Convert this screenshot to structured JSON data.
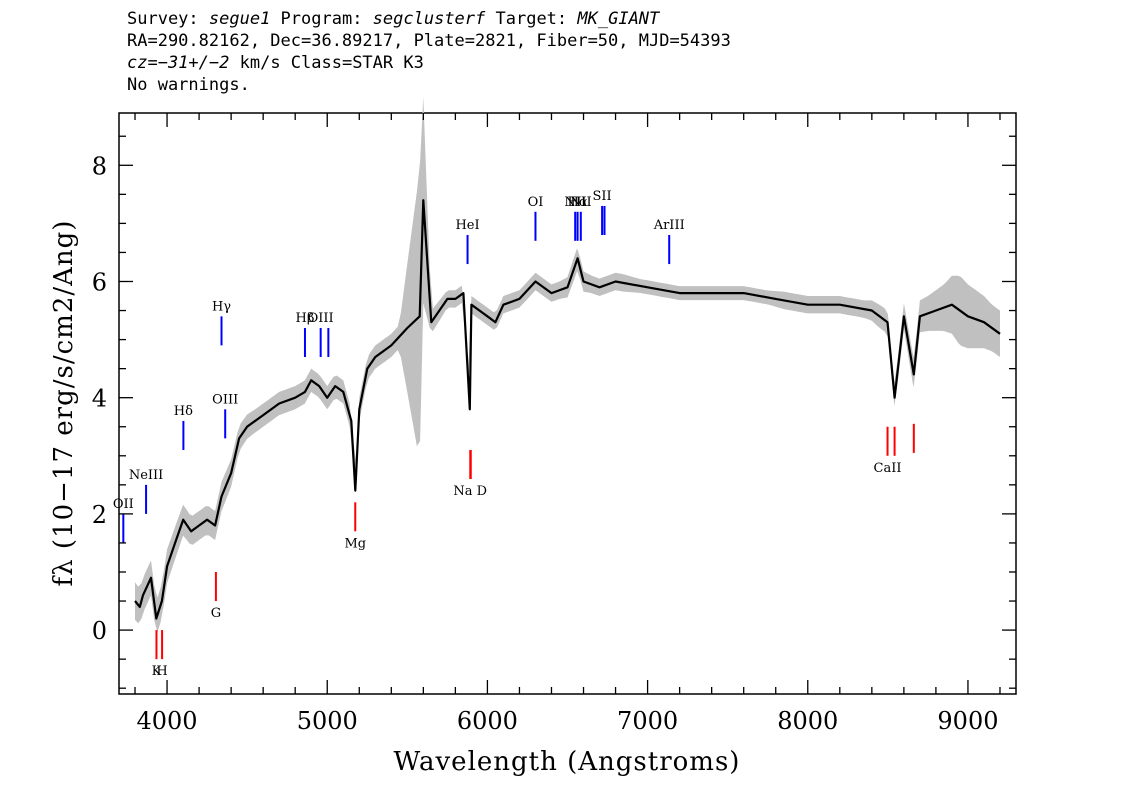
{
  "header": {
    "line1": {
      "survey_label": "Survey: ",
      "survey": "segue1",
      "program_label": " Program: ",
      "program": "segclusterf",
      "target_label": " Target: ",
      "target": "MK_GIANT"
    },
    "line2": "RA=290.82162, Dec=36.89217, Plate=2821, Fiber=50, MJD=54393",
    "line3": {
      "cz_label": "cz",
      "cz_value": "=−31+/−2",
      "rest": " km/s Class=STAR K3"
    },
    "line4": "No warnings."
  },
  "chart_data": {
    "type": "line",
    "title": "",
    "xlabel": "Wavelength (Angstroms)",
    "ylabel": "fλ (10−17 erg/s/cm2/Ang)",
    "xlim": [
      3700,
      9300
    ],
    "ylim": [
      -1.1,
      8.9
    ],
    "x_ticks": [
      4000,
      5000,
      6000,
      7000,
      8000,
      9000
    ],
    "y_ticks": [
      0,
      2,
      4,
      6,
      8
    ],
    "grid": false,
    "colors": {
      "flux": "#000000",
      "error": "#c0c0c0",
      "emission_lines": "#0000ff",
      "absorption_lines": "#ff0000"
    },
    "series": [
      {
        "role": "flux",
        "x": [
          3800,
          3830,
          3850,
          3900,
          3933,
          3968,
          4000,
          4050,
          4101,
          4150,
          4200,
          4250,
          4300,
          4340,
          4400,
          4450,
          4500,
          4600,
          4700,
          4800,
          4861,
          4900,
          4950,
          5000,
          5050,
          5100,
          5150,
          5175,
          5200,
          5250,
          5300,
          5400,
          5500,
          5577,
          5600,
          5650,
          5700,
          5750,
          5800,
          5850,
          5890,
          5900,
          5950,
          6000,
          6050,
          6100,
          6200,
          6300,
          6400,
          6500,
          6563,
          6600,
          6700,
          6800,
          7000,
          7200,
          7400,
          7600,
          7800,
          8000,
          8200,
          8400,
          8498,
          8542,
          8600,
          8662,
          8700,
          8800,
          8900,
          9000,
          9100,
          9200
        ],
        "y": [
          0.5,
          0.4,
          0.6,
          0.9,
          0.2,
          0.5,
          1.1,
          1.5,
          1.9,
          1.7,
          1.8,
          1.9,
          1.8,
          2.3,
          2.7,
          3.3,
          3.5,
          3.7,
          3.9,
          4.0,
          4.1,
          4.3,
          4.2,
          4.0,
          4.2,
          4.1,
          3.6,
          2.4,
          3.8,
          4.5,
          4.7,
          4.9,
          5.2,
          5.4,
          7.4,
          5.3,
          5.5,
          5.7,
          5.7,
          5.8,
          3.8,
          5.6,
          5.5,
          5.4,
          5.3,
          5.6,
          5.7,
          6.0,
          5.8,
          5.9,
          6.4,
          6.0,
          5.9,
          6.0,
          5.9,
          5.8,
          5.8,
          5.8,
          5.7,
          5.6,
          5.6,
          5.5,
          5.3,
          4.0,
          5.4,
          4.4,
          5.4,
          5.5,
          5.6,
          5.4,
          5.3,
          5.1
        ]
      },
      {
        "role": "error",
        "x": [
          3750,
          3850,
          3950,
          4050,
          4150,
          4250,
          4350,
          4450,
          4550,
          4650,
          4750,
          4850,
          4950,
          5050,
          5150,
          5250,
          5350,
          5450,
          5577,
          5650,
          5750,
          5850,
          5950,
          6050,
          6150,
          6250,
          6350,
          6450,
          6550,
          6650,
          6750,
          6850,
          6950,
          7050,
          7150,
          7250,
          7350,
          7450,
          7550,
          7650,
          7750,
          7850,
          7950,
          8050,
          8150,
          8250,
          8350,
          8450,
          8550,
          8650,
          8750,
          8850,
          8950,
          9050,
          9150
        ],
        "y": [
          0.35,
          0.3,
          0.3,
          0.28,
          0.25,
          0.25,
          0.25,
          0.22,
          0.2,
          0.2,
          0.2,
          0.2,
          0.2,
          0.2,
          0.2,
          0.2,
          0.2,
          0.2,
          2.5,
          0.2,
          0.15,
          0.15,
          0.15,
          0.15,
          0.15,
          0.15,
          0.15,
          0.15,
          0.2,
          0.15,
          0.15,
          0.15,
          0.12,
          0.12,
          0.12,
          0.12,
          0.12,
          0.12,
          0.12,
          0.12,
          0.12,
          0.15,
          0.15,
          0.15,
          0.15,
          0.15,
          0.15,
          0.2,
          0.2,
          0.25,
          0.3,
          0.4,
          0.6,
          0.5,
          0.4
        ]
      }
    ],
    "emission_lines": [
      {
        "label": "OII",
        "wavelength": 3727,
        "y0": 1.5,
        "y1": 2.0
      },
      {
        "label": "NeIII",
        "wavelength": 3869,
        "y0": 2.0,
        "y1": 2.5
      },
      {
        "label": "Hδ",
        "wavelength": 4102,
        "y0": 3.1,
        "y1": 3.6
      },
      {
        "label": "Hγ",
        "wavelength": 4340,
        "y0": 4.9,
        "y1": 5.4
      },
      {
        "label": "OIII",
        "wavelength": 4363,
        "y0": 3.3,
        "y1": 3.8
      },
      {
        "label": "Hβ",
        "wavelength": 4861,
        "y0": 4.7,
        "y1": 5.2
      },
      {
        "label": "OIII",
        "wavelength": 4959,
        "y0": 4.7,
        "y1": 5.2
      },
      {
        "label": "",
        "wavelength": 5007,
        "y0": 4.7,
        "y1": 5.2
      },
      {
        "label": "HeI",
        "wavelength": 5876,
        "y0": 6.3,
        "y1": 6.8
      },
      {
        "label": "OI",
        "wavelength": 6300,
        "y0": 6.7,
        "y1": 7.2
      },
      {
        "label": "NII",
        "wavelength": 6548,
        "y0": 6.7,
        "y1": 7.2
      },
      {
        "label": "Hα",
        "wavelength": 6563,
        "y0": 6.7,
        "y1": 7.2
      },
      {
        "label": "NII",
        "wavelength": 6583,
        "y0": 6.7,
        "y1": 7.2
      },
      {
        "label": "SII",
        "wavelength": 6716,
        "y0": 6.8,
        "y1": 7.3
      },
      {
        "label": "",
        "wavelength": 6731,
        "y0": 6.8,
        "y1": 7.3
      },
      {
        "label": "ArIII",
        "wavelength": 7135,
        "y0": 6.3,
        "y1": 6.8
      }
    ],
    "absorption_lines": [
      {
        "label": "K",
        "wavelength": 3934,
        "y0": -0.5,
        "y1": 0.0
      },
      {
        "label": "H",
        "wavelength": 3969,
        "y0": -0.5,
        "y1": 0.0
      },
      {
        "label": "G",
        "wavelength": 4305,
        "y0": 0.5,
        "y1": 1.0
      },
      {
        "label": "Mg",
        "wavelength": 5175,
        "y0": 1.7,
        "y1": 2.2
      },
      {
        "label": "Na D",
        "wavelength": 5893,
        "y0": 2.6,
        "y1": 3.1
      },
      {
        "label": "",
        "wavelength": 5896,
        "y0": 2.6,
        "y1": 3.1
      },
      {
        "label": "CaII",
        "wavelength": 8498,
        "y0": 3.0,
        "y1": 3.5
      },
      {
        "label": "",
        "wavelength": 8542,
        "y0": 3.0,
        "y1": 3.5
      },
      {
        "label": "",
        "wavelength": 8662,
        "y0": 3.05,
        "y1": 3.55
      }
    ]
  }
}
